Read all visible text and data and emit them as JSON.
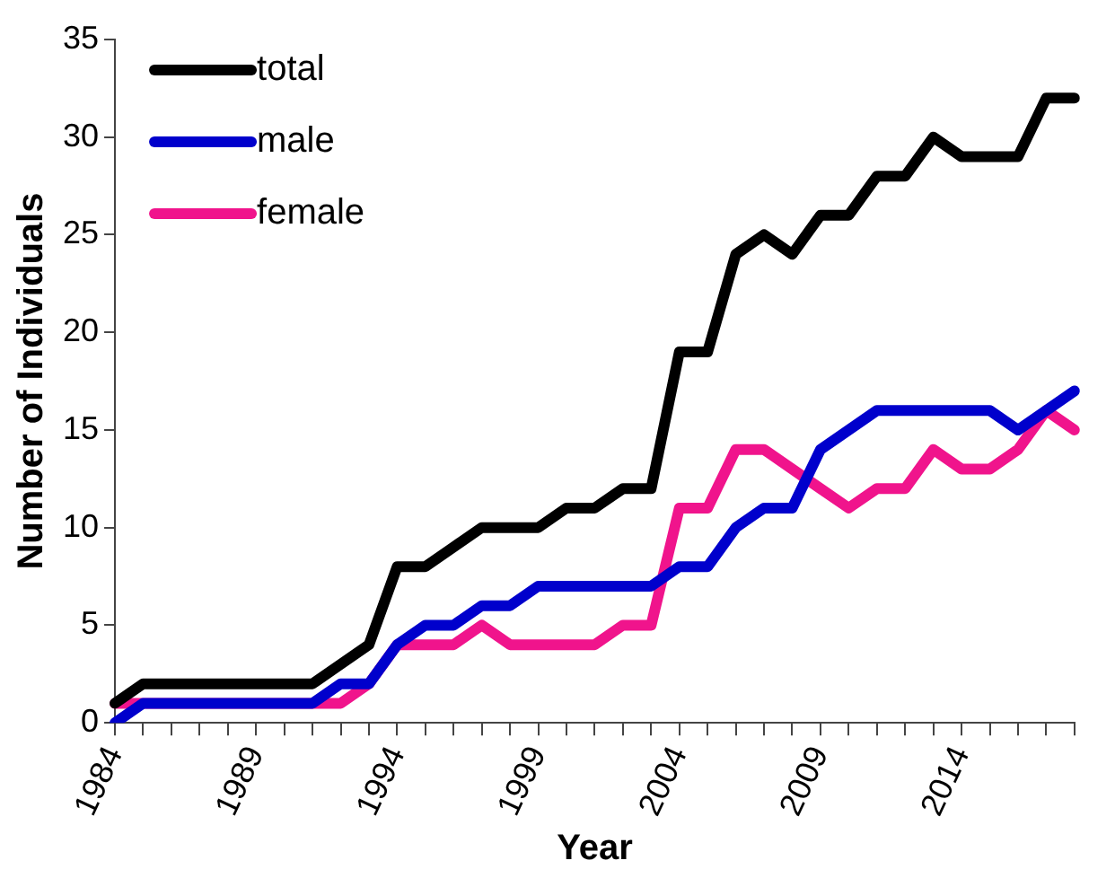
{
  "chart_data": {
    "type": "line",
    "xlabel": "Year",
    "ylabel": "Number of Individuals",
    "categories": [
      "1984",
      null,
      null,
      null,
      null,
      "1989",
      null,
      null,
      null,
      null,
      "1994",
      null,
      null,
      null,
      null,
      "1999",
      null,
      null,
      null,
      null,
      "2004",
      null,
      null,
      null,
      null,
      "2009",
      null,
      null,
      null,
      null,
      "2014",
      null,
      null,
      null,
      null
    ],
    "series": [
      {
        "name": "total",
        "color": "#000000",
        "values": [
          1,
          2,
          2,
          2,
          2,
          2,
          2,
          2,
          3,
          4,
          8,
          8,
          9,
          10,
          10,
          10,
          11,
          11,
          12,
          12,
          19,
          19,
          24,
          25,
          24,
          26,
          26,
          28,
          28,
          30,
          29,
          29,
          29,
          32,
          32
        ]
      },
      {
        "name": "male",
        "color": "#0000cc",
        "values": [
          0,
          1,
          1,
          1,
          1,
          1,
          1,
          1,
          2,
          2,
          4,
          5,
          5,
          6,
          6,
          7,
          7,
          7,
          7,
          7,
          8,
          8,
          10,
          11,
          11,
          14,
          15,
          16,
          16,
          16,
          16,
          16,
          15,
          16,
          17
        ]
      },
      {
        "name": "female",
        "color": "#f0148c",
        "values": [
          1,
          1,
          1,
          1,
          1,
          1,
          1,
          1,
          1,
          2,
          4,
          4,
          4,
          5,
          4,
          4,
          4,
          4,
          5,
          5,
          11,
          11,
          14,
          14,
          13,
          12,
          11,
          12,
          12,
          14,
          13,
          13,
          14,
          16,
          15
        ]
      }
    ],
    "ylim": [
      0,
      35
    ],
    "yticks": [
      0,
      5,
      10,
      15,
      20,
      25,
      30,
      35
    ],
    "grid": false,
    "legend": "top left",
    "marker": "none",
    "line_style": "solid"
  }
}
